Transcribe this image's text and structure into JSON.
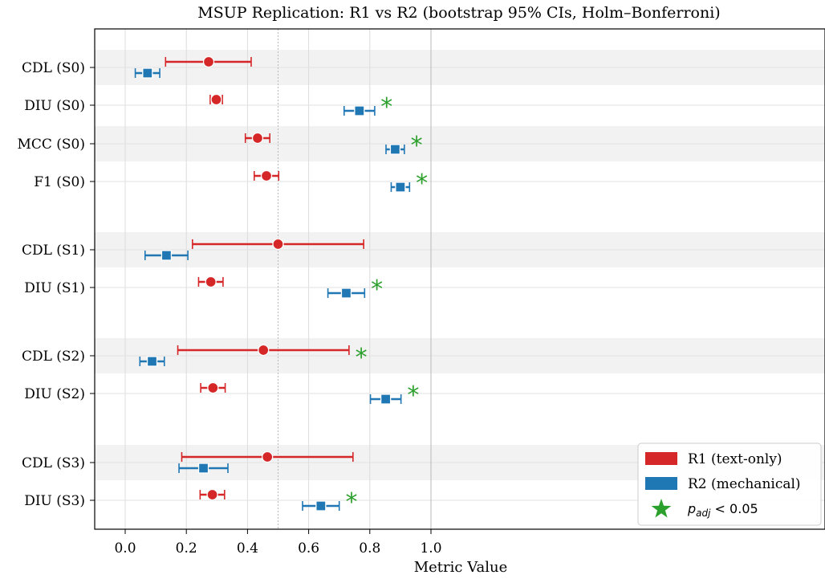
{
  "chart_data": {
    "type": "forest",
    "title": "MSUP Replication: R1 vs R2 (bootstrap 95% CIs, Holm–Bonferroni)",
    "xlabel": "Metric Value",
    "ylabel": "",
    "xlim": [
      -0.05,
      1.14
    ],
    "xticks": [
      0.0,
      0.2,
      0.4,
      0.6,
      0.8,
      1.0
    ],
    "xtick_labels": [
      "0.0",
      "0.2",
      "0.4",
      "0.6",
      "0.8",
      "1.0"
    ],
    "grid": "vertical",
    "reference_lines": [
      0.5,
      1.0
    ],
    "legend_position": "lower-right",
    "legend": [
      {
        "key": "r1",
        "label": "R1 (text-only)",
        "kind": "patch",
        "color": "#d62728"
      },
      {
        "key": "r2",
        "label": "R2 (mechanical)",
        "kind": "patch",
        "color": "#1f77b4"
      },
      {
        "key": "sig",
        "label": "p_adj < 0.05",
        "kind": "star",
        "color": "#2ca02c"
      }
    ],
    "series": [
      {
        "key": "r1",
        "name": "R1 (text-only)",
        "color": "#d62728",
        "marker": "circle"
      },
      {
        "key": "r2",
        "name": "R2 (mechanical)",
        "color": "#1f77b4",
        "marker": "square"
      }
    ],
    "significance_marker": {
      "symbol": "*",
      "color": "#2ca02c"
    },
    "rows": [
      {
        "label": "CDL (S0)",
        "shaded": true,
        "r1": {
          "mean": 0.273,
          "lo": 0.132,
          "hi": 0.412
        },
        "r2": {
          "mean": 0.073,
          "lo": 0.033,
          "hi": 0.113
        },
        "sig_x": null
      },
      {
        "label": "DIU (S0)",
        "shaded": false,
        "r1": {
          "mean": 0.298,
          "lo": 0.278,
          "hi": 0.318
        },
        "r2": {
          "mean": 0.766,
          "lo": 0.716,
          "hi": 0.816
        },
        "sig_x": 0.855
      },
      {
        "label": "MCC (S0)",
        "shaded": true,
        "r1": {
          "mean": 0.433,
          "lo": 0.393,
          "hi": 0.473
        },
        "r2": {
          "mean": 0.883,
          "lo": 0.853,
          "hi": 0.913
        },
        "sig_x": 0.953
      },
      {
        "label": "F1 (S0)",
        "shaded": false,
        "r1": {
          "mean": 0.462,
          "lo": 0.422,
          "hi": 0.502
        },
        "r2": {
          "mean": 0.9,
          "lo": 0.87,
          "hi": 0.93
        },
        "sig_x": 0.97
      },
      {
        "label": "CDL (S1)",
        "shaded": true,
        "r1": {
          "mean": 0.5,
          "lo": 0.22,
          "hi": 0.78
        },
        "r2": {
          "mean": 0.135,
          "lo": 0.065,
          "hi": 0.205
        },
        "sig_x": null
      },
      {
        "label": "DIU (S1)",
        "shaded": false,
        "r1": {
          "mean": 0.28,
          "lo": 0.24,
          "hi": 0.32
        },
        "r2": {
          "mean": 0.723,
          "lo": 0.663,
          "hi": 0.783
        },
        "sig_x": 0.823
      },
      {
        "label": "CDL (S2)",
        "shaded": true,
        "r1": {
          "mean": 0.452,
          "lo": 0.172,
          "hi": 0.732
        },
        "r2": {
          "mean": 0.088,
          "lo": 0.048,
          "hi": 0.128
        },
        "sig_x": 0.772
      },
      {
        "label": "DIU (S2)",
        "shaded": false,
        "r1": {
          "mean": 0.287,
          "lo": 0.247,
          "hi": 0.327
        },
        "r2": {
          "mean": 0.852,
          "lo": 0.802,
          "hi": 0.902
        },
        "sig_x": 0.942
      },
      {
        "label": "CDL (S3)",
        "shaded": true,
        "r1": {
          "mean": 0.465,
          "lo": 0.185,
          "hi": 0.745
        },
        "r2": {
          "mean": 0.256,
          "lo": 0.176,
          "hi": 0.336
        },
        "sig_x": null
      },
      {
        "label": "DIU (S3)",
        "shaded": false,
        "r1": {
          "mean": 0.285,
          "lo": 0.245,
          "hi": 0.325
        },
        "r2": {
          "mean": 0.64,
          "lo": 0.58,
          "hi": 0.7
        },
        "sig_x": 0.74
      }
    ]
  }
}
